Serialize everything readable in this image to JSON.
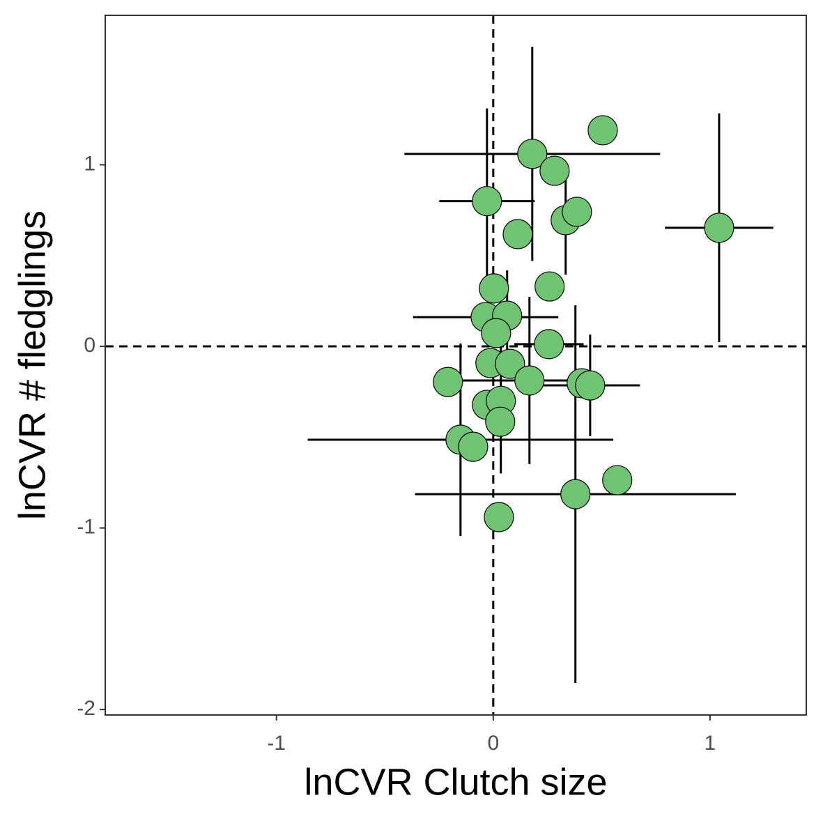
{
  "chart_data": {
    "type": "scatter",
    "x_label": "lnCVR Clutch size",
    "y_label": "lnCVR # fledglings",
    "xlim": [
      -1.79,
      1.444
    ],
    "ylim": [
      -2.03,
      1.823
    ],
    "xticks": [
      -1,
      0,
      1
    ],
    "yticks": [
      -2,
      -1,
      0,
      1
    ],
    "reference_lines": {
      "x": 0,
      "y": 0
    },
    "series": [
      {
        "color": "#71c374",
        "x": [
          0.505,
          0.18,
          0.283,
          -0.029,
          1.042,
          0.113,
          0.334,
          0.386,
          0.26,
          0.003,
          -0.035,
          0.064,
          0.013,
          0.257,
          -0.013,
          0.077,
          -0.209,
          0.167,
          0.408,
          0.447,
          -0.029,
          0.035,
          0.032,
          -0.151,
          -0.093,
          0.572,
          0.379,
          0.026
        ],
        "values": [
          1.19,
          1.06,
          0.967,
          0.8,
          0.653,
          0.618,
          0.695,
          0.741,
          0.33,
          0.319,
          0.161,
          0.169,
          0.073,
          0.012,
          -0.092,
          -0.096,
          -0.196,
          -0.188,
          -0.203,
          -0.215,
          -0.322,
          -0.3,
          -0.415,
          -0.514,
          -0.553,
          -0.737,
          -0.814,
          -0.94
        ],
        "xerr": [
          null,
          0.59,
          null,
          0.22,
          0.25,
          null,
          null,
          null,
          null,
          null,
          0.335,
          null,
          null,
          0.16,
          null,
          null,
          null,
          0.33,
          null,
          0.23,
          null,
          null,
          null,
          0.705,
          null,
          null,
          0.74,
          null
        ],
        "yerr": [
          null,
          0.59,
          null,
          0.51,
          0.63,
          null,
          0.3,
          null,
          null,
          null,
          null,
          0.25,
          null,
          null,
          null,
          null,
          null,
          0.46,
          null,
          0.28,
          null,
          0.4,
          null,
          0.53,
          null,
          null,
          1.04,
          null
        ]
      }
    ]
  }
}
